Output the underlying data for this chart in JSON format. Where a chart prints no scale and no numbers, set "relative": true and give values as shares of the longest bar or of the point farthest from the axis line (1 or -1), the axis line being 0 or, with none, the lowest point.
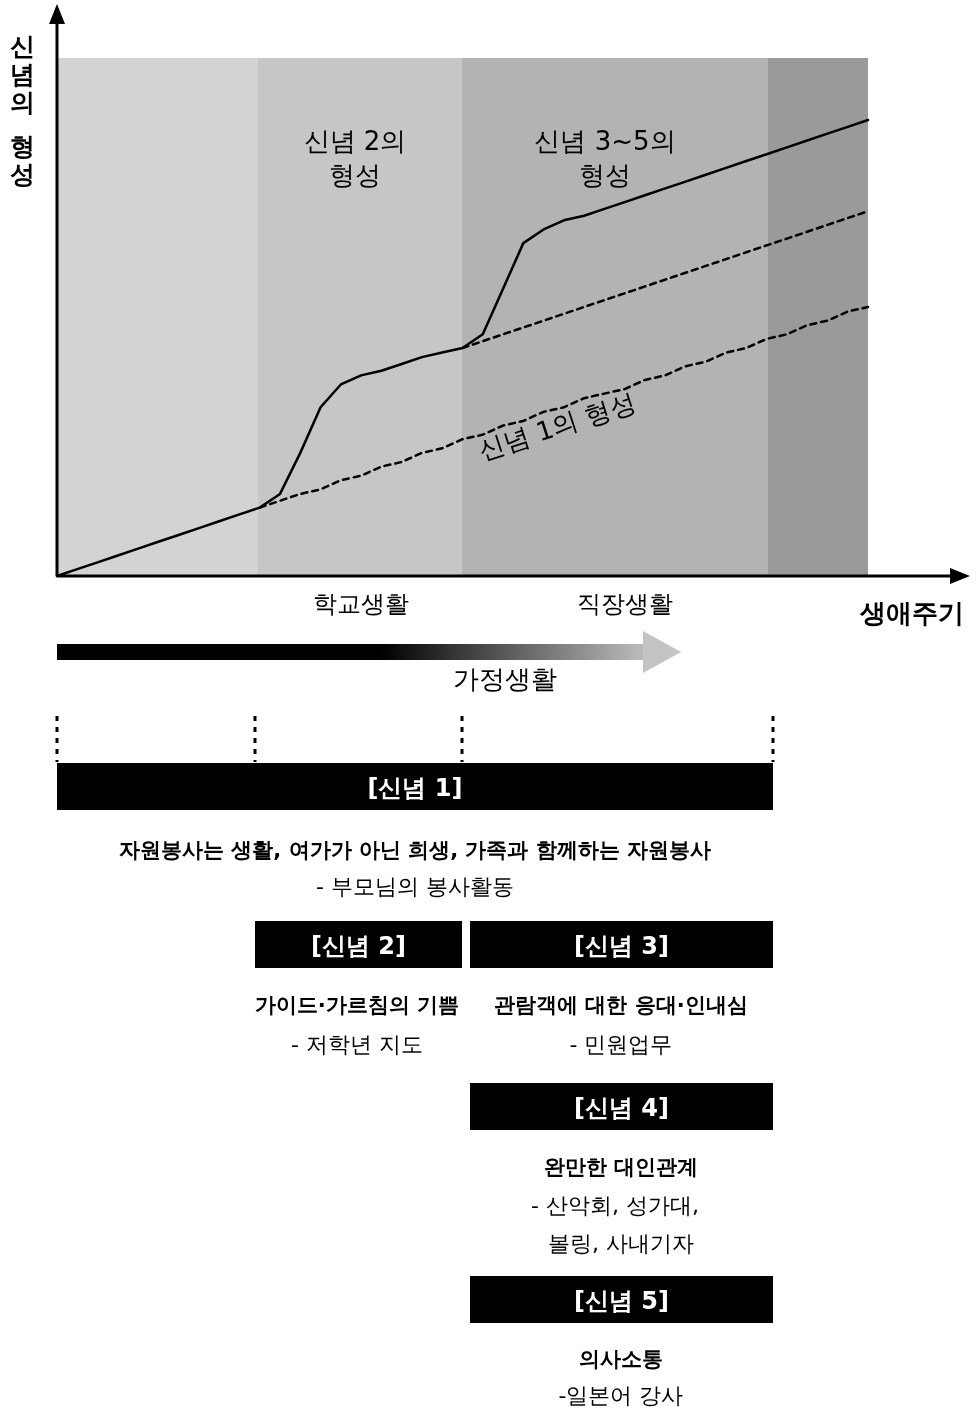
{
  "chart_data": [
    {
      "type": "line",
      "relative": true,
      "xlabel": "생애주기",
      "ylabel": "신념의 형성",
      "tick_labels": "x",
      "categories": [
        null,
        null,
        null,
        null,
        null,
        null,
        null,
        null,
        null,
        null,
        null,
        null,
        null,
        null,
        null,
        "학교생활",
        null,
        null,
        null,
        null,
        null,
        null,
        null,
        null,
        null,
        null,
        null,
        null,
        "직장생활",
        null,
        null,
        null,
        null,
        null,
        null,
        null,
        null,
        null,
        null,
        null,
        null
      ],
      "annotations": [
        "신념 1의 형성",
        "신념 2의 형성",
        "신념 3~5의 형성",
        "가정생활"
      ],
      "series": [
        {
          "color": "#000000",
          "line_style": "solid",
          "values": [
            0,
            0.015,
            0.03,
            0.045,
            0.06,
            0.075,
            0.09,
            0.105,
            0.12,
            0.135,
            0.15,
            0.18,
            0.27,
            0.37,
            0.42,
            0.44,
            0.45,
            0.465,
            0.48,
            0.49,
            0.5,
            0.53,
            0.63,
            0.73,
            0.76,
            0.78,
            0.79,
            0.805,
            0.82,
            0.835,
            0.85,
            0.865,
            0.88,
            0.895,
            0.91,
            0.925,
            0.94,
            0.955,
            0.97,
            0.985,
            1
          ]
        },
        {
          "color": "#000000",
          "line_style": "dashed",
          "values": [
            null,
            null,
            null,
            null,
            null,
            null,
            null,
            null,
            null,
            null,
            0.15,
            0.165,
            0.18,
            0.19,
            0.21,
            0.22,
            0.24,
            0.25,
            0.27,
            0.28,
            0.3,
            0.31,
            0.33,
            0.34,
            0.36,
            0.37,
            0.39,
            0.4,
            0.41,
            0.43,
            0.44,
            0.46,
            0.47,
            0.49,
            0.5,
            0.52,
            0.53,
            0.55,
            0.56,
            0.58,
            0.59
          ]
        },
        {
          "color": "#000000",
          "line_style": "dashed",
          "values": [
            null,
            null,
            null,
            null,
            null,
            null,
            null,
            null,
            null,
            null,
            null,
            null,
            null,
            null,
            null,
            null,
            null,
            null,
            null,
            null,
            0.5,
            0.515,
            0.53,
            0.545,
            0.56,
            0.575,
            0.59,
            0.605,
            0.62,
            0.635,
            0.65,
            0.665,
            0.68,
            0.695,
            0.71,
            0.725,
            0.74,
            0.755,
            0.77,
            0.785,
            0.8
          ]
        }
      ]
    },
    {
      "type": "other",
      "annotations": [
        "[신념 1]",
        "자원봉사는 생활, 여가가 아닌 희생, 가족과 함께하는 자원봉사",
        "- 부모님의 봉사활동",
        "[신념 2]",
        "[신념 3]",
        "가이드·가르침의 기쁨",
        "- 저학년 지도",
        "관람객에 대한 응대·인내심",
        "- 민원업무",
        "[신념 4]",
        "완만한 대인관계",
        "- 산악회, 성가대,",
        "볼링, 사내기자",
        "[신념 5]",
        "의사소통",
        "-일본어 강사"
      ]
    }
  ]
}
